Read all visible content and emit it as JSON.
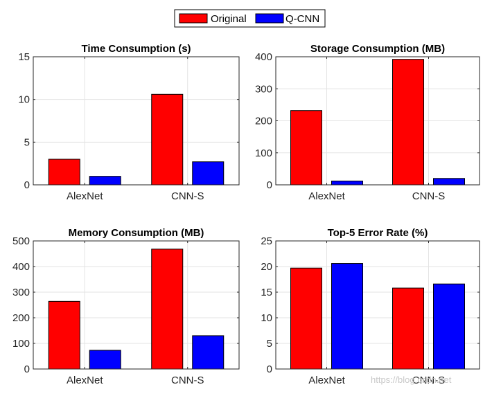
{
  "legend": {
    "placement": "top-center",
    "entries": [
      {
        "name": "Original",
        "color": "#ff0000"
      },
      {
        "name": "Q-CNN",
        "color": "#0000ff"
      }
    ]
  },
  "watermark": "https://blog.csdn.net",
  "chart_data": [
    {
      "type": "bar",
      "title": "Time Consumption (s)",
      "categories": [
        "AlexNet",
        "CNN-S"
      ],
      "series": [
        {
          "name": "Original",
          "color": "#ff0000",
          "values": [
            3.0,
            10.6
          ]
        },
        {
          "name": "Q-CNN",
          "color": "#0000ff",
          "values": [
            1.0,
            2.7
          ]
        }
      ],
      "ylim": [
        0,
        15
      ],
      "yticks": [
        0,
        5,
        10,
        15
      ],
      "grid": true
    },
    {
      "type": "bar",
      "title": "Storage Consumption (MB)",
      "categories": [
        "AlexNet",
        "CNN-S"
      ],
      "series": [
        {
          "name": "Original",
          "color": "#ff0000",
          "values": [
            232,
            392
          ]
        },
        {
          "name": "Q-CNN",
          "color": "#0000ff",
          "values": [
            12,
            20
          ]
        }
      ],
      "ylim": [
        0,
        400
      ],
      "yticks": [
        0,
        100,
        200,
        300,
        400
      ],
      "grid": true
    },
    {
      "type": "bar",
      "title": "Memory Consumption (MB)",
      "categories": [
        "AlexNet",
        "CNN-S"
      ],
      "series": [
        {
          "name": "Original",
          "color": "#ff0000",
          "values": [
            264,
            468
          ]
        },
        {
          "name": "Q-CNN",
          "color": "#0000ff",
          "values": [
            73,
            130
          ]
        }
      ],
      "ylim": [
        0,
        500
      ],
      "yticks": [
        0,
        100,
        200,
        300,
        400,
        500
      ],
      "grid": true
    },
    {
      "type": "bar",
      "title": "Top-5 Error Rate (%)",
      "categories": [
        "AlexNet",
        "CNN-S"
      ],
      "series": [
        {
          "name": "Original",
          "color": "#ff0000",
          "values": [
            19.7,
            15.8
          ]
        },
        {
          "name": "Q-CNN",
          "color": "#0000ff",
          "values": [
            20.6,
            16.6
          ]
        }
      ],
      "ylim": [
        0,
        25
      ],
      "yticks": [
        0,
        5,
        10,
        15,
        20,
        25
      ],
      "grid": true
    }
  ]
}
